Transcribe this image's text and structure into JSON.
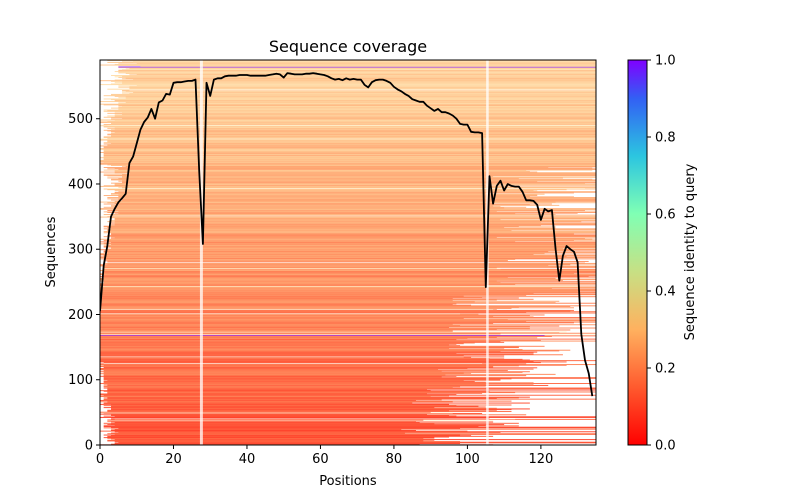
{
  "chart_data": {
    "type": "heatmap",
    "title": "Sequence coverage",
    "xlabel": "Positions",
    "ylabel": "Sequences",
    "xlim": [
      0,
      135
    ],
    "ylim": [
      0,
      590
    ],
    "xticks": [
      0,
      20,
      40,
      60,
      80,
      100,
      120
    ],
    "yticks": [
      0,
      100,
      200,
      300,
      400,
      500
    ],
    "colorbar": {
      "label": "Sequence identity to query",
      "range": [
        0.0,
        1.0
      ],
      "ticks": [
        "0.0",
        "0.2",
        "0.4",
        "0.6",
        "0.8",
        "1.0"
      ],
      "colormap": "rainbow_r"
    },
    "series": [
      {
        "type": "line",
        "color": "#000000",
        "x": [
          0,
          1,
          2,
          3,
          4,
          5,
          6,
          7,
          8,
          9,
          10,
          11,
          12,
          13,
          14,
          15,
          16,
          17,
          18,
          19,
          20,
          21,
          22,
          23,
          24,
          25,
          26,
          27,
          28,
          29,
          30,
          31,
          32,
          33,
          34,
          35,
          36,
          37,
          38,
          39,
          40,
          41,
          42,
          43,
          44,
          45,
          46,
          47,
          48,
          49,
          50,
          51,
          52,
          53,
          54,
          55,
          56,
          57,
          58,
          59,
          60,
          61,
          62,
          63,
          64,
          65,
          66,
          67,
          68,
          69,
          70,
          71,
          72,
          73,
          74,
          75,
          76,
          77,
          78,
          79,
          80,
          81,
          82,
          83,
          84,
          85,
          86,
          87,
          88,
          89,
          90,
          91,
          92,
          93,
          94,
          95,
          96,
          97,
          98,
          99,
          100,
          101,
          102,
          103,
          104,
          105,
          106,
          107,
          108,
          109,
          110,
          111,
          112,
          113,
          114,
          115,
          116,
          117,
          118,
          119,
          120,
          121,
          122,
          123,
          124,
          125,
          126,
          127,
          128,
          129,
          130,
          131,
          132,
          133,
          134
        ],
        "y": [
          205,
          275,
          305,
          350,
          362,
          372,
          378,
          385,
          432,
          442,
          462,
          483,
          495,
          502,
          515,
          500,
          525,
          528,
          538,
          537,
          555,
          556,
          556,
          557,
          558,
          558,
          560,
          420,
          308,
          555,
          535,
          560,
          562,
          562,
          565,
          566,
          566,
          566,
          567,
          567,
          567,
          566,
          566,
          566,
          566,
          566,
          567,
          568,
          569,
          568,
          563,
          570,
          569,
          568,
          568,
          568,
          569,
          569,
          570,
          569,
          568,
          567,
          565,
          562,
          560,
          561,
          559,
          562,
          560,
          561,
          560,
          560,
          552,
          548,
          556,
          559,
          560,
          560,
          558,
          555,
          549,
          545,
          542,
          538,
          535,
          530,
          528,
          526,
          526,
          520,
          516,
          512,
          515,
          510,
          510,
          508,
          505,
          500,
          492,
          491,
          491,
          480,
          479,
          479,
          478,
          242,
          412,
          370,
          397,
          405,
          390,
          400,
          397,
          396,
          396,
          388,
          375,
          375,
          374,
          368,
          345,
          362,
          358,
          360,
          300,
          252,
          290,
          305,
          300,
          296,
          280,
          170,
          130,
          110,
          75
        ]
      }
    ]
  }
}
